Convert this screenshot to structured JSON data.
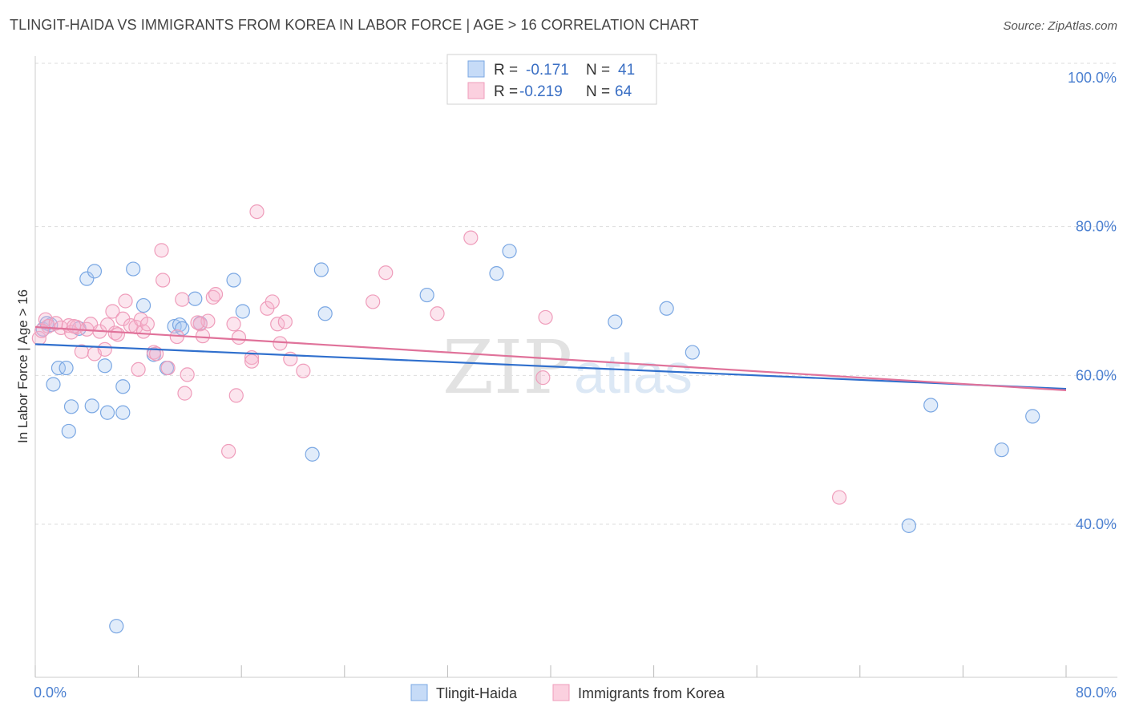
{
  "title": "TLINGIT-HAIDA VS IMMIGRANTS FROM KOREA IN LABOR FORCE | AGE > 16 CORRELATION CHART",
  "source": "Source: ZipAtlas.com",
  "watermark": {
    "zip": "ZIP",
    "atlas": "atlas"
  },
  "legend": {
    "rows": [
      {
        "r_label": "R =",
        "r_value": "-0.171",
        "n_label": "N =",
        "n_value": "41"
      },
      {
        "r_label": "R =",
        "r_value": "-0.219",
        "n_label": "N =",
        "n_value": "64"
      }
    ]
  },
  "chart_data": {
    "type": "scatter",
    "title": "TLINGIT-HAIDA VS IMMIGRANTS FROM KOREA IN LABOR FORCE | AGE > 16 CORRELATION CHART",
    "xlabel": "",
    "ylabel": "In Labor Force | Age > 16",
    "xlim": [
      0,
      80
    ],
    "ylim": [
      20,
      104
    ],
    "x_tick_labels": [
      {
        "value": 0,
        "label": "0.0%"
      },
      {
        "value": 80,
        "label": "80.0%"
      }
    ],
    "y_tick_labels": [
      {
        "value": 100,
        "label": "100.0%"
      },
      {
        "value": 80,
        "label": "80.0%"
      },
      {
        "value": 60,
        "label": "60.0%"
      },
      {
        "value": 40,
        "label": "40.0%"
      }
    ],
    "series": [
      {
        "name": "Tlingit-Haida",
        "color": "#8fb5e8",
        "line_color": "#2f6fcd",
        "trend": {
          "x": [
            0,
            80
          ],
          "y": [
            64.2,
            58.2
          ]
        },
        "points": [
          [
            0.6,
            66.2
          ],
          [
            1.2,
            66.8
          ],
          [
            1.4,
            58.8
          ],
          [
            1.8,
            61.0
          ],
          [
            2.4,
            61.0
          ],
          [
            2.8,
            55.8
          ],
          [
            2.6,
            52.5
          ],
          [
            3.4,
            66.3
          ],
          [
            4.0,
            73.0
          ],
          [
            4.6,
            74.0
          ],
          [
            4.4,
            55.9
          ],
          [
            5.4,
            61.3
          ],
          [
            5.6,
            55.0
          ],
          [
            6.3,
            26.3
          ],
          [
            6.8,
            55.0
          ],
          [
            6.8,
            58.5
          ],
          [
            7.6,
            74.3
          ],
          [
            8.4,
            69.4
          ],
          [
            9.2,
            62.8
          ],
          [
            10.2,
            61.0
          ],
          [
            10.8,
            66.6
          ],
          [
            11.2,
            66.8
          ],
          [
            11.4,
            66.3
          ],
          [
            12.4,
            70.3
          ],
          [
            12.8,
            67.0
          ],
          [
            15.4,
            72.8
          ],
          [
            16.1,
            68.6
          ],
          [
            21.5,
            49.4
          ],
          [
            22.5,
            68.3
          ],
          [
            22.2,
            74.2
          ],
          [
            30.4,
            70.8
          ],
          [
            35.8,
            73.7
          ],
          [
            36.8,
            76.7
          ],
          [
            45.0,
            67.2
          ],
          [
            49.0,
            69.0
          ],
          [
            51.0,
            63.1
          ],
          [
            67.8,
            39.8
          ],
          [
            69.5,
            56.0
          ],
          [
            75.0,
            50.0
          ],
          [
            77.4,
            54.5
          ],
          [
            0.9,
            67.0
          ]
        ]
      },
      {
        "name": "Immigrants from Korea",
        "color": "#f4a8c4",
        "line_color": "#e0729a",
        "trend": {
          "x": [
            0,
            80
          ],
          "y": [
            66.5,
            58.0
          ]
        },
        "points": [
          [
            0.3,
            65.0
          ],
          [
            0.8,
            67.5
          ],
          [
            1.0,
            66.6
          ],
          [
            1.6,
            67.0
          ],
          [
            2.0,
            66.4
          ],
          [
            2.6,
            66.7
          ],
          [
            2.8,
            65.8
          ],
          [
            3.2,
            66.5
          ],
          [
            3.6,
            63.2
          ],
          [
            4.0,
            66.2
          ],
          [
            4.3,
            66.9
          ],
          [
            4.6,
            62.9
          ],
          [
            5.0,
            65.9
          ],
          [
            5.4,
            63.5
          ],
          [
            5.6,
            66.8
          ],
          [
            6.0,
            68.6
          ],
          [
            6.2,
            65.7
          ],
          [
            6.4,
            65.5
          ],
          [
            6.8,
            67.6
          ],
          [
            7.0,
            70.0
          ],
          [
            7.4,
            66.7
          ],
          [
            7.8,
            66.5
          ],
          [
            8.0,
            60.8
          ],
          [
            8.2,
            67.5
          ],
          [
            8.4,
            65.9
          ],
          [
            8.7,
            66.9
          ],
          [
            9.2,
            63.1
          ],
          [
            9.4,
            62.9
          ],
          [
            9.8,
            76.8
          ],
          [
            9.9,
            72.8
          ],
          [
            10.3,
            61.0
          ],
          [
            11.0,
            65.2
          ],
          [
            11.4,
            70.2
          ],
          [
            11.6,
            57.6
          ],
          [
            11.8,
            60.1
          ],
          [
            12.8,
            66.9
          ],
          [
            13.0,
            65.3
          ],
          [
            13.4,
            67.3
          ],
          [
            13.8,
            70.5
          ],
          [
            14.0,
            70.9
          ],
          [
            15.4,
            66.9
          ],
          [
            15.6,
            57.3
          ],
          [
            15.8,
            65.1
          ],
          [
            16.8,
            62.4
          ],
          [
            16.8,
            61.9
          ],
          [
            17.2,
            82.0
          ],
          [
            18.0,
            69.0
          ],
          [
            18.4,
            69.9
          ],
          [
            18.8,
            66.9
          ],
          [
            19.0,
            64.3
          ],
          [
            19.4,
            67.2
          ],
          [
            19.8,
            62.2
          ],
          [
            20.8,
            60.6
          ],
          [
            15.0,
            49.8
          ],
          [
            26.2,
            69.9
          ],
          [
            27.2,
            73.8
          ],
          [
            31.2,
            68.3
          ],
          [
            33.8,
            78.5
          ],
          [
            39.4,
            59.7
          ],
          [
            39.6,
            67.8
          ],
          [
            62.4,
            43.6
          ],
          [
            0.5,
            66.0
          ],
          [
            3.0,
            66.6
          ],
          [
            12.6,
            67.1
          ]
        ]
      }
    ]
  },
  "bottom_legend": [
    {
      "label": "Tlingit-Haida",
      "color": "#8fb5e8"
    },
    {
      "label": "Immigrants from Korea",
      "color": "#f4a8c4"
    }
  ]
}
